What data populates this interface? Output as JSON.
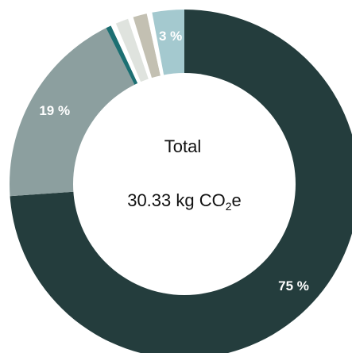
{
  "chart_data": {
    "type": "pie",
    "variant": "donut",
    "center": {
      "title": "Total",
      "value_number": "30.33",
      "value_unit_prefix": "kg CO",
      "value_unit_sub": "2",
      "value_unit_suffix": "e"
    },
    "slices": [
      {
        "value": 75,
        "label": "75 %",
        "color": "#243d3d"
      },
      {
        "value": 19,
        "label": "19 %",
        "color": "#8c9f9f"
      },
      {
        "value": 0.5,
        "label": "",
        "color": "#1c6f72"
      },
      {
        "value": 0.5,
        "label": "",
        "color": "#ffffff"
      },
      {
        "value": 1.2,
        "label": "",
        "color": "#dfe3de"
      },
      {
        "value": 0.5,
        "label": "",
        "color": "#ffffff"
      },
      {
        "value": 1.3,
        "label": "",
        "color": "#c3c0b2"
      },
      {
        "value": 0.5,
        "label": "",
        "color": "#ffffff"
      },
      {
        "value": 3,
        "label": "3 %",
        "color": "#a4c9cf"
      }
    ]
  }
}
